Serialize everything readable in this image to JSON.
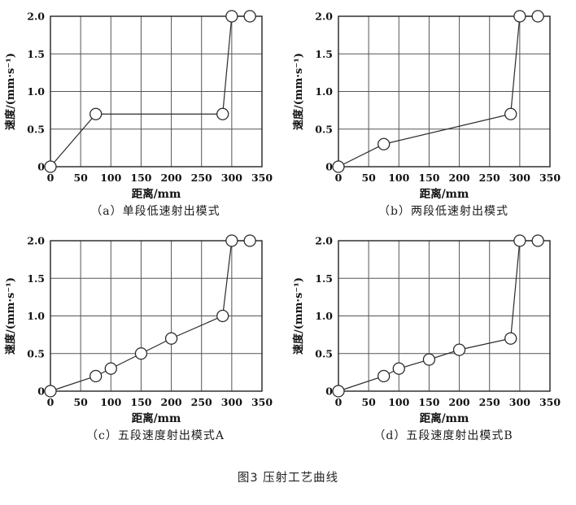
{
  "page": {
    "figure_title": "图3 压射工艺曲线"
  },
  "style": {
    "line_color": "#2b2b2b",
    "grid_color": "#555555",
    "border_color": "#222222",
    "marker_fill": "#ffffff",
    "text_color": "#111111"
  },
  "chart_data": [
    {
      "type": "line",
      "id": "a",
      "caption": "（a）单段低速射出模式",
      "xlabel": "距离/mm",
      "ylabel": "速度/(mm·s⁻¹)",
      "xlim": [
        0,
        350
      ],
      "ylim": [
        0,
        2.0
      ],
      "xticks": [
        0,
        50,
        100,
        150,
        200,
        250,
        300,
        350
      ],
      "xtick_labels": [
        "0",
        "50",
        "100",
        "150",
        "200",
        "250",
        "300",
        "350"
      ],
      "yticks": [
        0,
        0.5,
        1.0,
        1.5,
        2.0
      ],
      "ytick_labels": [
        "0",
        "0.5",
        "1.0",
        "1.5",
        "2.0"
      ],
      "grid": true,
      "legend": "none",
      "marker": "open-circle",
      "points": [
        [
          0,
          0
        ],
        [
          75,
          0.7
        ],
        [
          285,
          0.7
        ],
        [
          300,
          2.0
        ],
        [
          330,
          2.0
        ]
      ]
    },
    {
      "type": "line",
      "id": "b",
      "caption": "（b）两段低速射出模式",
      "xlabel": "距离/mm",
      "ylabel": "速度/(mm·s⁻¹)",
      "xlim": [
        0,
        350
      ],
      "ylim": [
        0,
        2.0
      ],
      "xticks": [
        0,
        50,
        100,
        150,
        200,
        250,
        300,
        350
      ],
      "xtick_labels": [
        "0",
        "50",
        "100",
        "150",
        "200",
        "250",
        "300",
        "350"
      ],
      "yticks": [
        0,
        0.5,
        1.0,
        1.5,
        2.0
      ],
      "ytick_labels": [
        "0",
        "0.5",
        "1.0",
        "1.5",
        "2.0"
      ],
      "grid": true,
      "legend": "none",
      "marker": "open-circle",
      "points": [
        [
          0,
          0
        ],
        [
          75,
          0.3
        ],
        [
          285,
          0.7
        ],
        [
          300,
          2.0
        ],
        [
          330,
          2.0
        ]
      ]
    },
    {
      "type": "line",
      "id": "c",
      "caption": "（c）五段速度射出模式A",
      "xlabel": "距离/mm",
      "ylabel": "速度/(mm·s⁻¹)",
      "xlim": [
        0,
        350
      ],
      "ylim": [
        0,
        2.0
      ],
      "xticks": [
        0,
        50,
        100,
        150,
        200,
        250,
        300,
        350
      ],
      "xtick_labels": [
        "0",
        "50",
        "100",
        "150",
        "200",
        "250",
        "300",
        "350"
      ],
      "yticks": [
        0,
        0.5,
        1.0,
        1.5,
        2.0
      ],
      "ytick_labels": [
        "0",
        "0.5",
        "1.0",
        "1.5",
        "2.0"
      ],
      "grid": true,
      "legend": "none",
      "marker": "open-circle",
      "points": [
        [
          0,
          0
        ],
        [
          75,
          0.2
        ],
        [
          100,
          0.3
        ],
        [
          150,
          0.5
        ],
        [
          200,
          0.7
        ],
        [
          285,
          1.0
        ],
        [
          300,
          2.0
        ],
        [
          330,
          2.0
        ]
      ]
    },
    {
      "type": "line",
      "id": "d",
      "caption": "（d）五段速度射出模式B",
      "xlabel": "距离/mm",
      "ylabel": "速度/(mm·s⁻¹)",
      "xlim": [
        0,
        350
      ],
      "ylim": [
        0,
        2.0
      ],
      "xticks": [
        0,
        50,
        100,
        150,
        200,
        250,
        300,
        350
      ],
      "xtick_labels": [
        "0",
        "50",
        "100",
        "150",
        "200",
        "250",
        "300",
        "350"
      ],
      "yticks": [
        0,
        0.5,
        1.0,
        1.5,
        2.0
      ],
      "ytick_labels": [
        "0",
        "0.5",
        "1.0",
        "1.5",
        "2.0"
      ],
      "grid": true,
      "legend": "none",
      "marker": "open-circle",
      "points": [
        [
          0,
          0
        ],
        [
          75,
          0.2
        ],
        [
          100,
          0.3
        ],
        [
          150,
          0.42
        ],
        [
          200,
          0.55
        ],
        [
          285,
          0.7
        ],
        [
          300,
          2.0
        ],
        [
          330,
          2.0
        ]
      ]
    }
  ]
}
